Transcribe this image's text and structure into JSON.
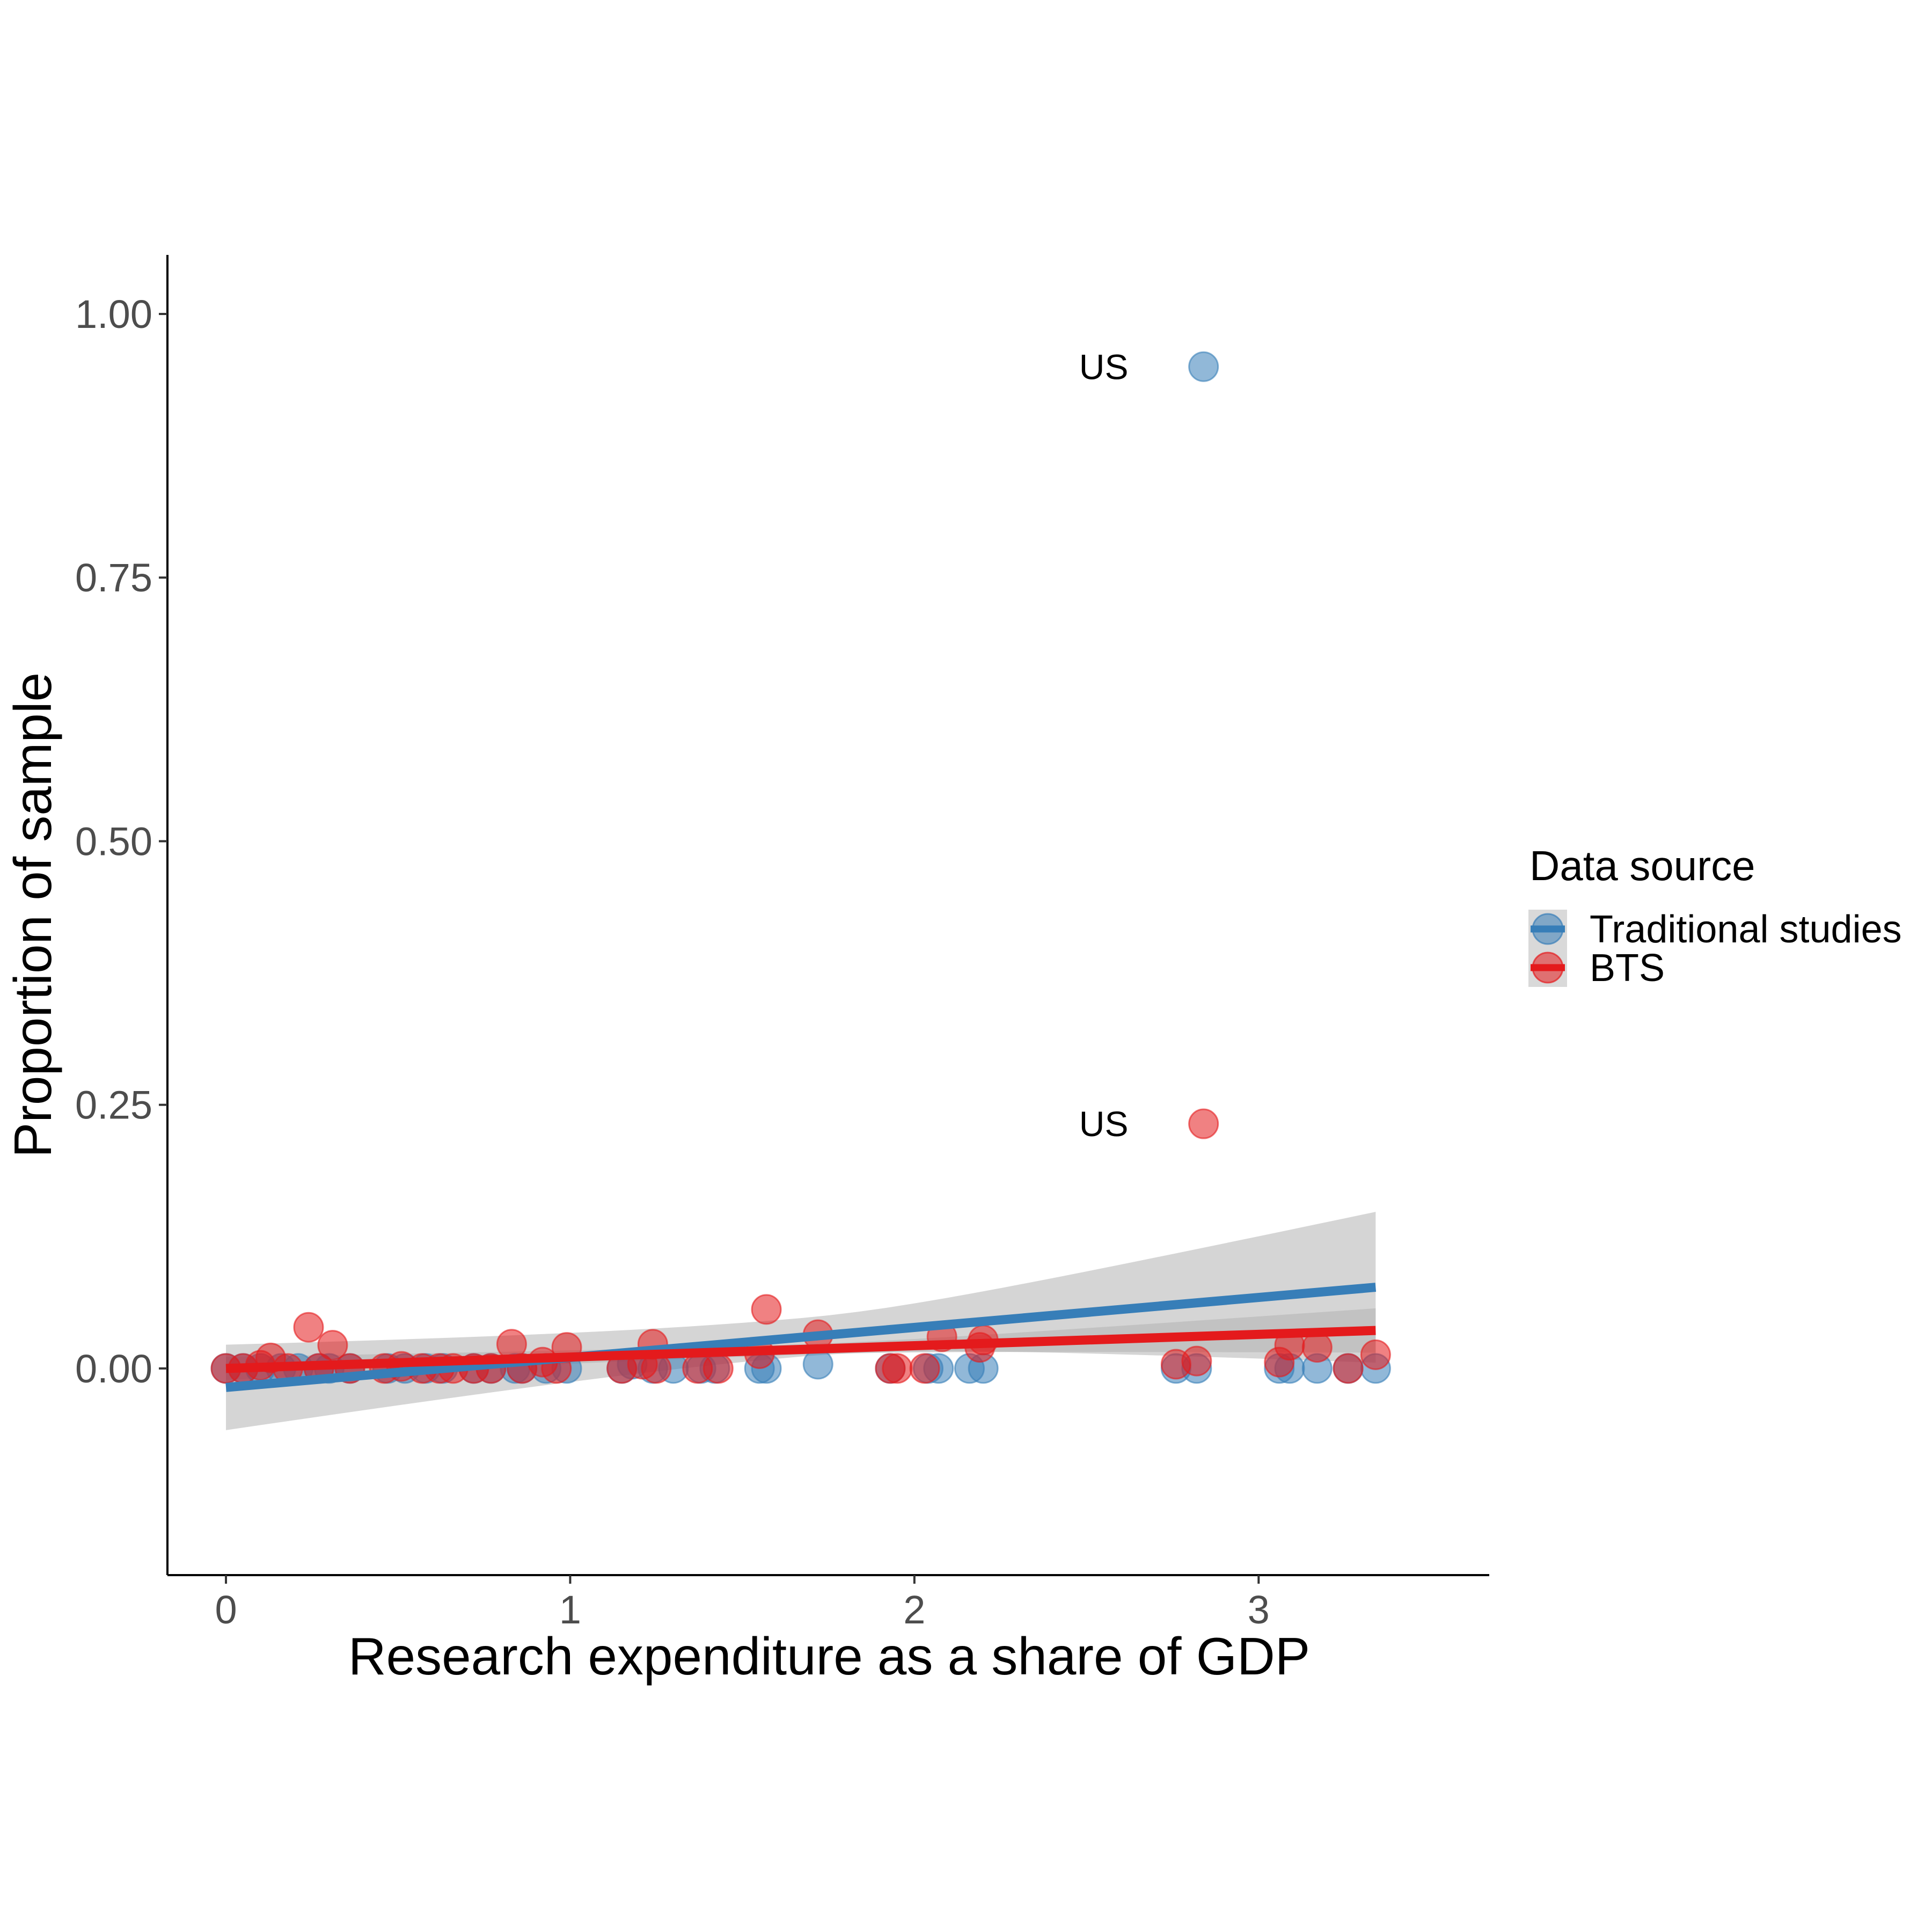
{
  "chart_data": {
    "type": "scatter",
    "title": "",
    "xlabel": "Research expenditure as a share of GDP",
    "ylabel": "Proportion of sample",
    "xlim": [
      -0.17,
      3.67
    ],
    "ylim": [
      -0.196,
      1.056
    ],
    "x_ticks": [
      0,
      1,
      2,
      3
    ],
    "x_tick_labels": [
      "0",
      "1",
      "2",
      "3"
    ],
    "y_ticks": [
      0,
      0.25,
      0.5,
      0.75,
      1.0
    ],
    "y_tick_labels": [
      "0.00",
      "0.25",
      "0.50",
      "0.75",
      "1.00"
    ],
    "grid": false,
    "legend": {
      "title": "Data source",
      "position": "right",
      "entries": [
        "Traditional studies",
        "BTS"
      ]
    },
    "colors": {
      "traditional": "#377EB8",
      "bts": "#E41A1C",
      "ribbon": "#b3b3b3",
      "axis": "#000000"
    },
    "annotations": [
      {
        "text": "US",
        "x": 2.55,
        "y": 0.95,
        "series": "Traditional studies"
      },
      {
        "text": "US",
        "x": 2.55,
        "y": 0.232,
        "series": "BTS"
      }
    ],
    "series": [
      {
        "name": "Traditional studies",
        "color": "#377EB8",
        "points": [
          {
            "x": 0.0,
            "y": 0.0
          },
          {
            "x": 0.05,
            "y": 0.0
          },
          {
            "x": 0.1,
            "y": 0.0
          },
          {
            "x": 0.16,
            "y": 0.0
          },
          {
            "x": 0.21,
            "y": 0.0
          },
          {
            "x": 0.27,
            "y": 0.0
          },
          {
            "x": 0.3,
            "y": 0.0
          },
          {
            "x": 0.36,
            "y": 0.0
          },
          {
            "x": 0.47,
            "y": 0.0
          },
          {
            "x": 0.52,
            "y": 0.0
          },
          {
            "x": 0.58,
            "y": 0.0
          },
          {
            "x": 0.63,
            "y": 0.0
          },
          {
            "x": 0.72,
            "y": 0.0
          },
          {
            "x": 0.77,
            "y": 0.0
          },
          {
            "x": 0.84,
            "y": 0.0
          },
          {
            "x": 0.86,
            "y": 0.0
          },
          {
            "x": 0.93,
            "y": 0.0
          },
          {
            "x": 0.99,
            "y": 0.0
          },
          {
            "x": 1.15,
            "y": 0.0
          },
          {
            "x": 1.18,
            "y": 0.004
          },
          {
            "x": 1.24,
            "y": 0.0
          },
          {
            "x": 1.3,
            "y": 0.0
          },
          {
            "x": 1.38,
            "y": 0.0
          },
          {
            "x": 1.42,
            "y": 0.0
          },
          {
            "x": 1.55,
            "y": 0.0
          },
          {
            "x": 1.57,
            "y": 0.0
          },
          {
            "x": 1.72,
            "y": 0.004
          },
          {
            "x": 1.93,
            "y": 0.0
          },
          {
            "x": 2.04,
            "y": 0.0
          },
          {
            "x": 2.07,
            "y": 0.0
          },
          {
            "x": 2.16,
            "y": 0.0
          },
          {
            "x": 2.2,
            "y": 0.0
          },
          {
            "x": 2.76,
            "y": 0.0
          },
          {
            "x": 2.82,
            "y": 0.0
          },
          {
            "x": 2.84,
            "y": 0.95
          },
          {
            "x": 3.06,
            "y": 0.0
          },
          {
            "x": 3.09,
            "y": 0.0
          },
          {
            "x": 3.17,
            "y": 0.0
          },
          {
            "x": 3.26,
            "y": 0.0
          },
          {
            "x": 3.34,
            "y": 0.0
          }
        ],
        "trend": {
          "x": [
            0.0,
            3.34
          ],
          "y": [
            -0.018,
            0.077
          ]
        },
        "ribbon": {
          "x": [
            0.0,
            3.34
          ],
          "lower": [
            -0.056,
            0.005
          ],
          "upper": [
            0.025,
            0.148
          ]
        }
      },
      {
        "name": "BTS",
        "color": "#E41A1C",
        "points": [
          {
            "x": 0.0,
            "y": 0.0
          },
          {
            "x": 0.05,
            "y": 0.0
          },
          {
            "x": 0.1,
            "y": 0.003
          },
          {
            "x": 0.13,
            "y": 0.01
          },
          {
            "x": 0.18,
            "y": 0.0
          },
          {
            "x": 0.24,
            "y": 0.039
          },
          {
            "x": 0.27,
            "y": 0.0
          },
          {
            "x": 0.31,
            "y": 0.022
          },
          {
            "x": 0.36,
            "y": 0.0
          },
          {
            "x": 0.46,
            "y": 0.0
          },
          {
            "x": 0.51,
            "y": 0.002
          },
          {
            "x": 0.57,
            "y": 0.0
          },
          {
            "x": 0.62,
            "y": 0.0
          },
          {
            "x": 0.66,
            "y": 0.0
          },
          {
            "x": 0.72,
            "y": 0.0
          },
          {
            "x": 0.77,
            "y": 0.0
          },
          {
            "x": 0.83,
            "y": 0.023
          },
          {
            "x": 0.86,
            "y": 0.0
          },
          {
            "x": 0.92,
            "y": 0.006
          },
          {
            "x": 0.96,
            "y": 0.0
          },
          {
            "x": 0.99,
            "y": 0.02
          },
          {
            "x": 1.15,
            "y": 0.0
          },
          {
            "x": 1.21,
            "y": 0.004
          },
          {
            "x": 1.24,
            "y": 0.023
          },
          {
            "x": 1.25,
            "y": 0.0
          },
          {
            "x": 1.37,
            "y": 0.0
          },
          {
            "x": 1.43,
            "y": 0.0
          },
          {
            "x": 1.57,
            "y": 0.056
          },
          {
            "x": 1.55,
            "y": 0.014
          },
          {
            "x": 1.72,
            "y": 0.032
          },
          {
            "x": 1.93,
            "y": 0.0
          },
          {
            "x": 1.95,
            "y": 0.0
          },
          {
            "x": 2.03,
            "y": 0.0
          },
          {
            "x": 2.08,
            "y": 0.03
          },
          {
            "x": 2.2,
            "y": 0.027
          },
          {
            "x": 2.19,
            "y": 0.02
          },
          {
            "x": 2.84,
            "y": 0.232
          },
          {
            "x": 2.76,
            "y": 0.004
          },
          {
            "x": 2.82,
            "y": 0.007
          },
          {
            "x": 3.06,
            "y": 0.006
          },
          {
            "x": 3.09,
            "y": 0.022
          },
          {
            "x": 3.17,
            "y": 0.02
          },
          {
            "x": 3.26,
            "y": 0.0
          },
          {
            "x": 3.34,
            "y": 0.013
          }
        ],
        "trend": {
          "x": [
            0.0,
            3.34
          ],
          "y": [
            0.0,
            0.036
          ]
        },
        "ribbon": {
          "x": [
            0.0,
            3.34
          ],
          "lower": [
            -0.01,
            0.012
          ],
          "upper": [
            0.012,
            0.054
          ]
        }
      }
    ]
  }
}
